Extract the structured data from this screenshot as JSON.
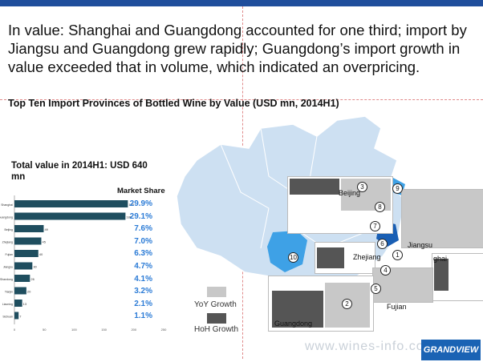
{
  "headline": "In value: Shanghai and Guangdong accounted for one third; import by Jiangsu and Guangdong grew rapidly; Guangdong’s import growth in value exceeded that in volume, which indicated an overpricing.",
  "subtitle": "Top Ten Import  Provinces of Bottled Wine by Value (USD mn, 2014H1)",
  "total_label": "Total value in 2014H1: USD 640 mn",
  "market_share_label": "Market Share",
  "legend": {
    "yoy": "YoY Growth",
    "hoh": "HoH Growth",
    "yoy_color": "#c8c8c8",
    "hoh_color": "#555555"
  },
  "map_labels": {
    "beijing": "Beijing",
    "jiangsu": "Jiangsu",
    "shanghai": "ghai",
    "zhejiang": "Zhejiang",
    "fujian": "Fujian",
    "guangdong": "Guangdong"
  },
  "map_numbers": [
    "1",
    "2",
    "3",
    "4",
    "5",
    "6",
    "7",
    "8",
    "9",
    "10"
  ],
  "watermark": "www.wines-info.com",
  "logo_text": "GRANDVIEW",
  "colors": {
    "bar": "#1f4e5f",
    "share_text": "#2b7bd6",
    "map_land": "#cde0f2",
    "map_highlight_dark": "#1a5fb4",
    "map_highlight_light": "#3ea1e6"
  },
  "chart_data": {
    "type": "bar",
    "orientation": "horizontal",
    "categories": [
      "Shanghai",
      "Guangdong",
      "Beijing",
      "Zhejiang",
      "Fujian",
      "Jiangsu",
      "Shandong",
      "Tianjin",
      "Liaoning",
      "Sichuan"
    ],
    "values": [
      190,
      186,
      49,
      45,
      40,
      30,
      26,
      20,
      13,
      7
    ],
    "market_share": [
      "29.9%",
      "29.1%",
      "7.6%",
      "7.0%",
      "6.3%",
      "4.7%",
      "4.1%",
      "3.2%",
      "2.1%",
      "1.1%"
    ],
    "xlim": [
      0,
      250
    ],
    "xticks": [
      "0",
      "50",
      "100",
      "150",
      "200",
      "250"
    ]
  }
}
